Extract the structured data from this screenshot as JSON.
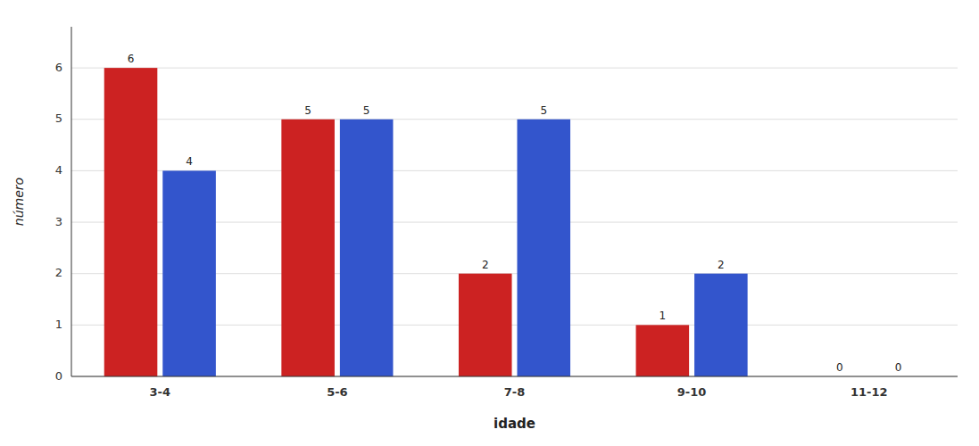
{
  "chart_data": {
    "type": "bar",
    "categories": [
      "3-4",
      "5-6",
      "7-8",
      "9-10",
      "11-12"
    ],
    "series": [
      {
        "color": "#CC2222",
        "values": [
          6,
          5,
          2,
          1,
          0
        ]
      },
      {
        "color": "#3355CC",
        "values": [
          4,
          5,
          5,
          2,
          0
        ]
      }
    ],
    "xlabel": "idade",
    "ylabel": "número",
    "ylim": [
      0,
      6.8
    ],
    "yticks": [
      0,
      1,
      2,
      3,
      4,
      5,
      6
    ],
    "grid": true,
    "data_labels": true
  }
}
